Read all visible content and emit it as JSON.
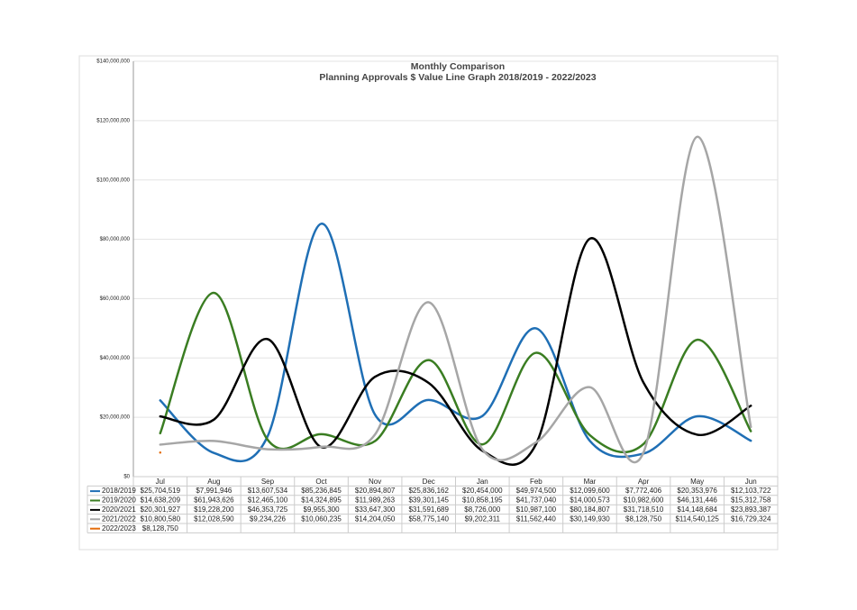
{
  "chart_data": {
    "type": "line",
    "title": "Monthly Comparison",
    "subtitle": "Planning Approvals $ Value Line Graph 2018/2019 - 2022/2023",
    "categories": [
      "Jul",
      "Aug",
      "Sep",
      "Oct",
      "Nov",
      "Dec",
      "Jan",
      "Feb",
      "Mar",
      "Apr",
      "May",
      "Jun"
    ],
    "ylim": [
      0,
      140000000
    ],
    "yticks": [
      {
        "value": 0,
        "label": "$0"
      },
      {
        "value": 20000000,
        "label": "$20,000,000"
      },
      {
        "value": 40000000,
        "label": "$40,000,000"
      },
      {
        "value": 60000000,
        "label": "$60,000,000"
      },
      {
        "value": 80000000,
        "label": "$80,000,000"
      },
      {
        "value": 100000000,
        "label": "$100,000,000"
      },
      {
        "value": 120000000,
        "label": "$120,000,000"
      },
      {
        "value": 140000000,
        "label": "$140,000,000"
      }
    ],
    "grid": true,
    "smooth": true,
    "series": [
      {
        "name": "2018/2019",
        "color": "#1f6fb5",
        "values": [
          25704519,
          7991946,
          13607534,
          85236845,
          20894807,
          25836162,
          20454000,
          49974500,
          12099600,
          7772406,
          20353976,
          12103722
        ],
        "value_labels": [
          "$25,704,519",
          "$7,991,946",
          "$13,607,534",
          "$85,236,845",
          "$20,894,807",
          "$25,836,162",
          "$20,454,000",
          "$49,974,500",
          "$12,099,600",
          "$7,772,406",
          "$20,353,976",
          "$12,103,722"
        ]
      },
      {
        "name": "2019/2020",
        "color": "#3a7d22",
        "values": [
          14638209,
          61943626,
          12465100,
          14324895,
          11989263,
          39301145,
          10858195,
          41737040,
          14000573,
          10982600,
          46131446,
          15312758
        ],
        "value_labels": [
          "$14,638,209",
          "$61,943,626",
          "$12,465,100",
          "$14,324,895",
          "$11,989,263",
          "$39,301,145",
          "$10,858,195",
          "$41,737,040",
          "$14,000,573",
          "$10,982,600",
          "$46,131,446",
          "$15,312,758"
        ]
      },
      {
        "name": "2020/2021",
        "color": "#000000",
        "values": [
          20301927,
          19228200,
          46353725,
          9955300,
          33647300,
          31591689,
          8726000,
          10987100,
          80184807,
          31718510,
          14148684,
          23893387
        ],
        "value_labels": [
          "$20,301,927",
          "$19,228,200",
          "$46,353,725",
          "$9,955,300",
          "$33,647,300",
          "$31,591,689",
          "$8,726,000",
          "$10,987,100",
          "$80,184,807",
          "$31,718,510",
          "$14,148,684",
          "$23,893,387"
        ]
      },
      {
        "name": "2021/2022",
        "color": "#a6a6a6",
        "values": [
          10800580,
          12028590,
          9234226,
          10060235,
          14204050,
          58775140,
          9202311,
          11562440,
          30149930,
          8128750,
          114540125,
          16729324
        ],
        "value_labels": [
          "$10,800,580",
          "$12,028,590",
          "$9,234,226",
          "$10,060,235",
          "$14,204,050",
          "$58,775,140",
          "$9,202,311",
          "$11,562,440",
          "$30,149,930",
          "$8,128,750",
          "$114,540,125",
          "$16,729,324"
        ]
      },
      {
        "name": "2022/2023",
        "color": "#e46c0a",
        "values": [
          8128750,
          null,
          null,
          null,
          null,
          null,
          null,
          null,
          null,
          null,
          null,
          null
        ],
        "value_labels": [
          "$8,128,750",
          null,
          null,
          null,
          null,
          null,
          null,
          null,
          null,
          null,
          null,
          null
        ]
      }
    ]
  }
}
